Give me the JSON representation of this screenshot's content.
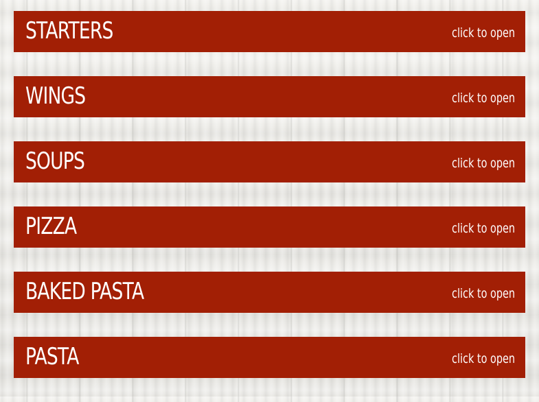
{
  "colors": {
    "bar": "#a21f05",
    "text": "#ffffff",
    "background": "#ecebe7"
  },
  "menu": {
    "sections": [
      {
        "title": "STARTERS",
        "hint": "click to open"
      },
      {
        "title": "WINGS",
        "hint": "click to open"
      },
      {
        "title": "SOUPS",
        "hint": "click to open"
      },
      {
        "title": "PIZZA",
        "hint": "click to open"
      },
      {
        "title": "BAKED PASTA",
        "hint": "click to open"
      },
      {
        "title": "PASTA",
        "hint": "click to open"
      }
    ]
  }
}
